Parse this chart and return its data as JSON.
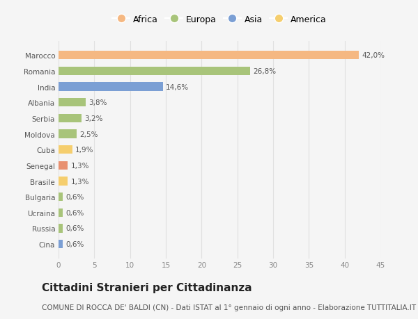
{
  "categories": [
    "Cina",
    "Russia",
    "Ucraina",
    "Bulgaria",
    "Brasile",
    "Senegal",
    "Cuba",
    "Moldova",
    "Serbia",
    "Albania",
    "India",
    "Romania",
    "Marocco"
  ],
  "values": [
    0.6,
    0.6,
    0.6,
    0.6,
    1.3,
    1.3,
    1.9,
    2.5,
    3.2,
    3.8,
    14.6,
    26.8,
    42.0
  ],
  "colors": [
    "#7b9fd4",
    "#a8c47a",
    "#a8c47a",
    "#a8c47a",
    "#f5ce6e",
    "#e89070",
    "#f5ce6e",
    "#a8c47a",
    "#a8c47a",
    "#a8c47a",
    "#7b9fd4",
    "#a8c47a",
    "#f5b882"
  ],
  "labels": [
    "0,6%",
    "0,6%",
    "0,6%",
    "0,6%",
    "1,3%",
    "1,3%",
    "1,9%",
    "2,5%",
    "3,2%",
    "3,8%",
    "14,6%",
    "26,8%",
    "42,0%"
  ],
  "legend": [
    {
      "label": "Africa",
      "color": "#f5b882"
    },
    {
      "label": "Europa",
      "color": "#a8c47a"
    },
    {
      "label": "Asia",
      "color": "#7b9fd4"
    },
    {
      "label": "America",
      "color": "#f5ce6e"
    }
  ],
  "xlim": [
    0,
    45
  ],
  "xticks": [
    0,
    5,
    10,
    15,
    20,
    25,
    30,
    35,
    40,
    45
  ],
  "title": "Cittadini Stranieri per Cittadinanza",
  "subtitle": "COMUNE DI ROCCA DE' BALDI (CN) - Dati ISTAT al 1° gennaio di ogni anno - Elaborazione TUTTITALIA.IT",
  "bg_color": "#f5f5f5",
  "grid_color": "#e0e0e0",
  "bar_height": 0.55,
  "title_fontsize": 11,
  "subtitle_fontsize": 7.5,
  "label_fontsize": 7.5,
  "tick_fontsize": 7.5,
  "legend_fontsize": 9
}
